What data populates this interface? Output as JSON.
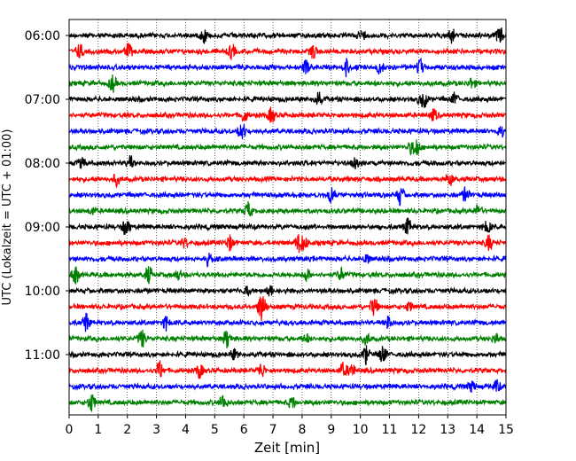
{
  "chart_data": {
    "type": "line",
    "title": "",
    "xlabel": "Zeit  [min]",
    "ylabel": "UTC (Lokalzeit = UTC + 01:00)",
    "xlim": [
      0,
      15
    ],
    "x_ticks": [
      0,
      1,
      2,
      3,
      4,
      5,
      6,
      7,
      8,
      9,
      10,
      11,
      12,
      13,
      14,
      15
    ],
    "y_tick_labels": [
      "06:00",
      "07:00",
      "08:00",
      "09:00",
      "10:00",
      "11:00"
    ],
    "trace_interval_min": 15,
    "trace_count": 24,
    "start_time": "06:00",
    "grid": "vertical dotted at each minute",
    "legend": "none",
    "color_cycle": [
      "#000000",
      "#ff0000",
      "#0000ff",
      "#008000"
    ]
  }
}
